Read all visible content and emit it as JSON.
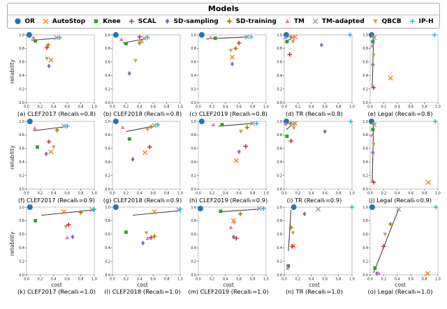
{
  "legend": {
    "title": "Models",
    "items": [
      {
        "label": "OR",
        "color": "#1f77b4",
        "marker": "circle",
        "icon": "circle-marker-icon"
      },
      {
        "label": "AutoStop",
        "color": "#ff7f0e",
        "marker": "x",
        "icon": "x-marker-icon"
      },
      {
        "label": "Knee",
        "color": "#2ca02c",
        "marker": "square",
        "icon": "square-marker-icon"
      },
      {
        "label": "SCAL",
        "color": "#d62728",
        "marker": "plus",
        "icon": "plus-marker-icon"
      },
      {
        "label": "SD-sampling",
        "color": "#9467bd",
        "marker": "diamond",
        "icon": "diamond-marker-icon"
      },
      {
        "label": "SD-training",
        "color": "#b8860b",
        "marker": "star4",
        "icon": "diamond-plus-marker-icon"
      },
      {
        "label": "TM",
        "color": "#e377c2",
        "marker": "triangle-up",
        "icon": "triangle-up-marker-icon"
      },
      {
        "label": "TM-adapted",
        "color": "#9a9a9a",
        "marker": "x",
        "icon": "x-marker-icon"
      },
      {
        "label": "QBCB",
        "color": "#c9a24b",
        "marker": "triangle-down",
        "icon": "triangle-down-marker-icon"
      },
      {
        "label": "IP-H",
        "color": "#17becf",
        "marker": "plus",
        "icon": "plus-marker-icon"
      }
    ]
  },
  "axes": {
    "ylabel": "reliability",
    "xlabel": "cost",
    "ticks": [
      "0.0",
      "0.2",
      "0.4",
      "0.6",
      "0.8",
      "1.0"
    ],
    "xlim": [
      0,
      1
    ],
    "ylim": [
      0,
      1
    ]
  },
  "chart_data": {
    "type": "scatter",
    "grid_rows": 3,
    "grid_cols": 5,
    "line_color": "#444444",
    "line_meaning": "trade-off line",
    "subplots": [
      {
        "id": "a",
        "caption": "(a) CLEF2017 (Recallₜ=0.8)",
        "line": [
          [
            0.07,
            0.92
          ],
          [
            0.45,
            0.95
          ]
        ],
        "points": {
          "OR": [
            0.04,
            1.0
          ],
          "AutoStop": [
            0.36,
            0.63
          ],
          "Knee": [
            0.13,
            0.91
          ],
          "SCAL": [
            0.3,
            0.81
          ],
          "SD-sampling": [
            0.33,
            0.54
          ],
          "SD-training": [
            0.32,
            0.85
          ],
          "TM": [
            0.1,
            0.96
          ],
          "TM-adapted": [
            0.44,
            0.96
          ],
          "QBCB": [
            0.3,
            0.65
          ],
          "IP-H": [
            0.49,
            0.96
          ]
        }
      },
      {
        "id": "b",
        "caption": "(b) CLEF2018 (Recallₜ=0.8)",
        "line": [
          [
            0.15,
            0.88
          ],
          [
            0.48,
            0.94
          ]
        ],
        "points": {
          "OR": [
            0.05,
            1.0
          ],
          "AutoStop": [
            0.43,
            0.91
          ],
          "Knee": [
            0.2,
            0.87
          ],
          "SCAL": [
            0.4,
            0.97
          ],
          "SD-sampling": [
            0.25,
            0.43
          ],
          "SD-training": [
            0.4,
            0.88
          ],
          "TM": [
            0.13,
            0.93
          ],
          "TM-adapted": [
            0.47,
            0.95
          ],
          "QBCB": [
            0.34,
            0.62
          ],
          "IP-H": [
            0.52,
            0.96
          ]
        }
      },
      {
        "id": "c",
        "caption": "(c) CLEF2019 (Recallₜ=0.8)",
        "line": [
          [
            0.12,
            0.94
          ],
          [
            0.72,
            0.97
          ]
        ],
        "points": {
          "OR": [
            0.05,
            1.0
          ],
          "AutoStop": [
            0.5,
            0.67
          ],
          "Knee": [
            0.25,
            0.95
          ],
          "SCAL": [
            0.6,
            0.88
          ],
          "SD-sampling": [
            0.5,
            0.57
          ],
          "SD-training": [
            0.55,
            0.8
          ],
          "TM": [
            0.18,
            0.96
          ],
          "TM-adapted": [
            0.72,
            0.97
          ],
          "QBCB": [
            0.48,
            0.77
          ],
          "IP-H": [
            0.78,
            0.97
          ]
        }
      },
      {
        "id": "d",
        "caption": "(d) TR (Recallₜ=0.8)",
        "line": [
          [
            0.03,
            0.9
          ],
          [
            0.12,
            0.96
          ]
        ],
        "points": {
          "OR": [
            0.03,
            1.0
          ],
          "AutoStop": [
            0.16,
            0.97
          ],
          "Knee": [
            0.04,
            0.9
          ],
          "SCAL": [
            0.08,
            0.71
          ],
          "SD-sampling": [
            0.55,
            0.85
          ],
          "SD-training": [
            0.1,
            0.97
          ],
          "TM": [
            0.02,
            0.96
          ],
          "TM-adapted": [
            0.12,
            0.96
          ],
          "QBCB": [
            0.13,
            0.9
          ],
          "IP-H": [
            0.97,
            1.0
          ]
        }
      },
      {
        "id": "e",
        "caption": "(e) Legal (Recallₜ=0.8)",
        "line": [
          [
            0.03,
            0.22
          ],
          [
            0.05,
            0.96
          ]
        ],
        "points": {
          "OR": [
            0.02,
            1.0
          ],
          "AutoStop": [
            0.3,
            0.36
          ],
          "Knee": [
            0.04,
            0.9
          ],
          "SCAL": [
            0.05,
            0.22
          ],
          "SD-sampling": [
            0.04,
            0.56
          ],
          "SD-training": [
            0.05,
            0.97
          ],
          "TM": [
            0.03,
            0.84
          ],
          "TM-adapted": [
            0.06,
            0.96
          ],
          "QBCB": [
            0.05,
            0.7
          ],
          "IP-H": [
            0.95,
            1.0
          ]
        }
      },
      {
        "id": "f",
        "caption": "(f) CLEF2017 (Recallₜ=0.9)",
        "line": [
          [
            0.1,
            0.86
          ],
          [
            0.56,
            0.92
          ]
        ],
        "points": {
          "OR": [
            0.05,
            1.0
          ],
          "AutoStop": [
            0.36,
            0.55
          ],
          "Knee": [
            0.16,
            0.62
          ],
          "SCAL": [
            0.33,
            0.7
          ],
          "SD-sampling": [
            0.29,
            0.52
          ],
          "SD-training": [
            0.45,
            0.87
          ],
          "TM": [
            0.12,
            0.9
          ],
          "TM-adapted": [
            0.55,
            0.93
          ],
          "QBCB": [
            0.4,
            0.62
          ],
          "IP-H": [
            0.6,
            0.93
          ]
        }
      },
      {
        "id": "g",
        "caption": "(g) CLEF2018 (Recallₜ=0.9)",
        "line": [
          [
            0.2,
            0.85
          ],
          [
            0.62,
            0.93
          ]
        ],
        "points": {
          "OR": [
            0.05,
            1.0
          ],
          "AutoStop": [
            0.48,
            0.54
          ],
          "Knee": [
            0.25,
            0.74
          ],
          "SCAL": [
            0.55,
            0.62
          ],
          "SD-sampling": [
            0.3,
            0.44
          ],
          "SD-training": [
            0.57,
            0.92
          ],
          "TM": [
            0.15,
            0.91
          ],
          "TM-adapted": [
            0.62,
            0.94
          ],
          "QBCB": [
            0.52,
            0.88
          ],
          "IP-H": [
            0.67,
            0.95
          ]
        }
      },
      {
        "id": "h",
        "caption": "(h) CLEF2019 (Recallₜ=0.9)",
        "line": [
          [
            0.3,
            0.93
          ],
          [
            0.8,
            0.97
          ]
        ],
        "points": {
          "OR": [
            0.05,
            1.0
          ],
          "AutoStop": [
            0.56,
            0.42
          ],
          "Knee": [
            0.35,
            0.95
          ],
          "SCAL": [
            0.7,
            0.63
          ],
          "SD-sampling": [
            0.6,
            0.55
          ],
          "SD-training": [
            0.72,
            0.91
          ],
          "TM": [
            0.22,
            0.95
          ],
          "TM-adapted": [
            0.8,
            0.97
          ],
          "QBCB": [
            0.63,
            0.85
          ],
          "IP-H": [
            0.86,
            0.97
          ]
        }
      },
      {
        "id": "i",
        "caption": "(i) TR (Recallₜ=0.9)",
        "line": [
          [
            0.03,
            0.88
          ],
          [
            0.13,
            0.96
          ]
        ],
        "points": {
          "OR": [
            0.03,
            1.0
          ],
          "AutoStop": [
            0.16,
            0.97
          ],
          "Knee": [
            0.04,
            0.78
          ],
          "SCAL": [
            0.1,
            0.71
          ],
          "SD-sampling": [
            0.6,
            0.85
          ],
          "SD-training": [
            0.09,
            0.97
          ],
          "TM": [
            0.02,
            0.96
          ],
          "TM-adapted": [
            0.13,
            0.96
          ],
          "QBCB": [
            0.14,
            0.9
          ],
          "IP-H": [
            0.98,
            1.0
          ]
        }
      },
      {
        "id": "j",
        "caption": "(j) Legal (Recallₜ=0.9)",
        "line": [
          [
            0.03,
            0.1
          ],
          [
            0.05,
            0.95
          ]
        ],
        "points": {
          "OR": [
            0.02,
            1.0
          ],
          "AutoStop": [
            0.86,
            0.1
          ],
          "Knee": [
            0.04,
            0.88
          ],
          "SCAL": [
            0.05,
            0.1
          ],
          "SD-sampling": [
            0.04,
            0.54
          ],
          "SD-training": [
            0.05,
            0.96
          ],
          "TM": [
            0.03,
            0.8
          ],
          "TM-adapted": [
            0.06,
            0.95
          ],
          "QBCB": [
            0.05,
            0.66
          ],
          "IP-H": [
            0.96,
            1.0
          ]
        }
      },
      {
        "id": "k",
        "caption": "(k) CLEF2017 (Recallₜ=1.0)",
        "line": [
          [
            0.22,
            0.88
          ],
          [
            1.0,
            0.96
          ]
        ],
        "points": {
          "OR": [
            0.05,
            1.0
          ],
          "AutoStop": [
            0.55,
            0.93
          ],
          "Knee": [
            0.13,
            0.8
          ],
          "SCAL": [
            0.62,
            0.74
          ],
          "SD-sampling": [
            0.68,
            0.56
          ],
          "SD-training": [
            0.8,
            0.92
          ],
          "TM": [
            0.6,
            0.55
          ],
          "TM-adapted": [
            0.97,
            0.96
          ],
          "QBCB": [
            0.58,
            0.71
          ],
          "IP-H": [
            1.0,
            0.97
          ]
        }
      },
      {
        "id": "l",
        "caption": "(l) CLEF2018 (Recallₜ=1.0)",
        "line": [
          [
            0.3,
            0.88
          ],
          [
            1.0,
            0.95
          ]
        ],
        "points": {
          "OR": [
            0.05,
            1.0
          ],
          "AutoStop": [
            0.62,
            0.93
          ],
          "Knee": [
            0.2,
            0.63
          ],
          "SCAL": [
            0.57,
            0.55
          ],
          "SD-sampling": [
            0.45,
            0.47
          ],
          "SD-training": [
            0.62,
            0.57
          ],
          "TM": [
            0.52,
            0.54
          ],
          "TM-adapted": [
            0.98,
            0.96
          ],
          "QBCB": [
            0.5,
            0.62
          ],
          "IP-H": [
            1.0,
            0.97
          ]
        }
      },
      {
        "id": "m",
        "caption": "(m) CLEF2019 (Recallₜ=1.0)",
        "line": [
          [
            0.3,
            0.93
          ],
          [
            0.88,
            0.97
          ]
        ],
        "points": {
          "OR": [
            0.03,
            0.98
          ],
          "AutoStop": [
            0.52,
            0.8
          ],
          "Knee": [
            0.33,
            0.94
          ],
          "SCAL": [
            0.56,
            0.54
          ],
          "SD-sampling": [
            0.52,
            0.56
          ],
          "SD-training": [
            0.62,
            0.9
          ],
          "TM": [
            0.48,
            0.7
          ],
          "TM-adapted": [
            0.9,
            0.98
          ],
          "QBCB": [
            0.53,
            0.77
          ],
          "IP-H": [
            0.96,
            0.98
          ]
        }
      },
      {
        "id": "n",
        "caption": "(n) TR (Recallₜ=1.0)",
        "line": [
          [
            0.06,
            0.35
          ],
          [
            0.1,
            0.96
          ]
        ],
        "points": {
          "OR": [
            0.14,
            1.0
          ],
          "AutoStop": [
            0.13,
            0.43
          ],
          "Knee": [
            0.06,
            0.13
          ],
          "SCAL": [
            0.12,
            0.42
          ],
          "SD-sampling": [
            0.3,
            0.9
          ],
          "SD-training": [
            0.1,
            0.7
          ],
          "TM": [
            0.05,
            0.1
          ],
          "TM-adapted": [
            0.5,
            0.97
          ],
          "QBCB": [
            0.13,
            0.62
          ],
          "IP-H": [
            1.0,
            1.0
          ]
        }
      },
      {
        "id": "o",
        "caption": "(o) Legal (Recallₜ=1.0)",
        "line": [
          [
            0.05,
            0.03
          ],
          [
            0.42,
            0.97
          ]
        ],
        "points": {
          "OR": [
            0.03,
            1.0
          ],
          "AutoStop": [
            0.85,
            0.02
          ],
          "Knee": [
            0.07,
            0.1
          ],
          "SCAL": [
            0.2,
            0.42
          ],
          "SD-sampling": [
            0.1,
            0.02
          ],
          "SD-training": [
            0.3,
            0.75
          ],
          "TM": [
            0.13,
            0.02
          ],
          "TM-adapted": [
            0.42,
            0.97
          ],
          "QBCB": [
            0.22,
            0.6
          ],
          "IP-H": [
            0.97,
            1.0
          ]
        }
      }
    ]
  }
}
